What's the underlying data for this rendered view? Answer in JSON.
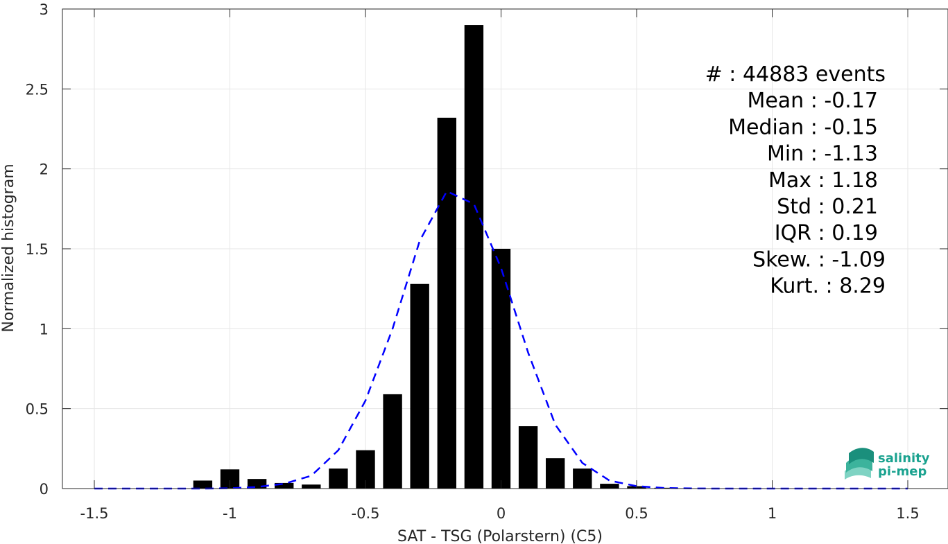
{
  "chart_data": {
    "type": "bar",
    "xlabel": "SAT - TSG (Polarstern) (C5)",
    "ylabel": "Normalized histogram",
    "xlim": [
      -1.5,
      1.5
    ],
    "ylim": [
      0,
      3
    ],
    "xticks": [
      -1.5,
      -1,
      -0.5,
      0,
      0.5,
      1,
      1.5
    ],
    "xtick_labels": [
      "-1.5",
      "-1",
      "-0.5",
      "0",
      "0.5",
      "1",
      "1.5"
    ],
    "yticks": [
      0,
      0.5,
      1,
      1.5,
      2,
      2.5,
      3
    ],
    "ytick_labels": [
      "0",
      "0.5",
      "1",
      "1.5",
      "2",
      "2.5",
      "3"
    ],
    "grid": true,
    "bar_color": "#000000",
    "bar_width": 0.07,
    "bars": {
      "x": [
        -1.1,
        -1.0,
        -0.9,
        -0.8,
        -0.7,
        -0.6,
        -0.5,
        -0.4,
        -0.3,
        -0.2,
        -0.1,
        0.0,
        0.1,
        0.2,
        0.3,
        0.4,
        0.5,
        0.6
      ],
      "values": [
        0.05,
        0.12,
        0.06,
        0.035,
        0.025,
        0.125,
        0.24,
        0.59,
        1.28,
        2.32,
        2.9,
        1.5,
        0.39,
        0.19,
        0.125,
        0.03,
        0.015,
        0.005
      ]
    },
    "fit_curve": {
      "style": "dashed",
      "color": "#0000ff",
      "x": [
        -1.5,
        -1.4,
        -1.3,
        -1.2,
        -1.1,
        -1.0,
        -0.9,
        -0.8,
        -0.7,
        -0.6,
        -0.5,
        -0.4,
        -0.3,
        -0.2,
        -0.1,
        0.0,
        0.1,
        0.2,
        0.3,
        0.4,
        0.5,
        0.6,
        0.7,
        0.8,
        0.9,
        1.0,
        1.1,
        1.2,
        1.3,
        1.4,
        1.5
      ],
      "y": [
        0,
        0,
        0,
        0,
        0,
        0.002,
        0.01,
        0.03,
        0.08,
        0.24,
        0.55,
        1.0,
        1.55,
        1.86,
        1.78,
        1.38,
        0.85,
        0.4,
        0.16,
        0.05,
        0.015,
        0.004,
        0.001,
        0,
        0,
        0,
        0,
        0,
        0,
        0,
        0
      ]
    },
    "stats": [
      {
        "label": "#  : 44883 events"
      },
      {
        "label": "Mean : -0.17"
      },
      {
        "label": "Median : -0.15"
      },
      {
        "label": "Min : -1.13"
      },
      {
        "label": "Max : 1.18"
      },
      {
        "label": "Std : 0.21"
      },
      {
        "label": "IQR : 0.19"
      },
      {
        "label": "Skew. : -1.09"
      },
      {
        "label": "Kurt. : 8.29"
      }
    ]
  },
  "logo": {
    "line1": "salinity",
    "line2": "pi-mep",
    "color": "#1aa28f"
  }
}
